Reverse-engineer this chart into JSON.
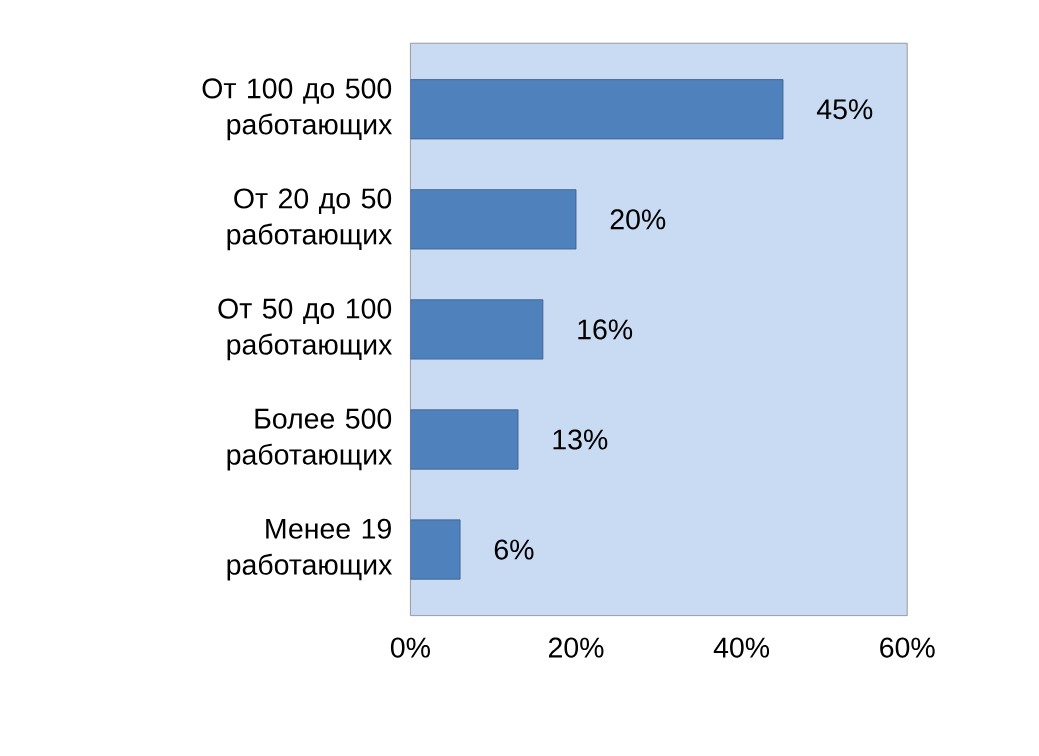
{
  "chart_data": {
    "type": "bar",
    "orientation": "horizontal",
    "categories": [
      "От 100 до 500 работающих",
      "От 20 до 50 работающих",
      "От 50 до 100 работающих",
      "Более 500 работающих",
      "Менее 19 работающих"
    ],
    "values": [
      45,
      20,
      16,
      13,
      6
    ],
    "value_labels": [
      "45%",
      "20%",
      "16%",
      "13%",
      "6%"
    ],
    "color": "#4f81bd",
    "xlim": [
      0,
      60
    ],
    "xticks": [
      {
        "value": 0,
        "label": "0%"
      },
      {
        "value": 20,
        "label": "20%"
      },
      {
        "value": 40,
        "label": "40%"
      },
      {
        "value": 60,
        "label": "60%"
      }
    ],
    "grid": false
  }
}
